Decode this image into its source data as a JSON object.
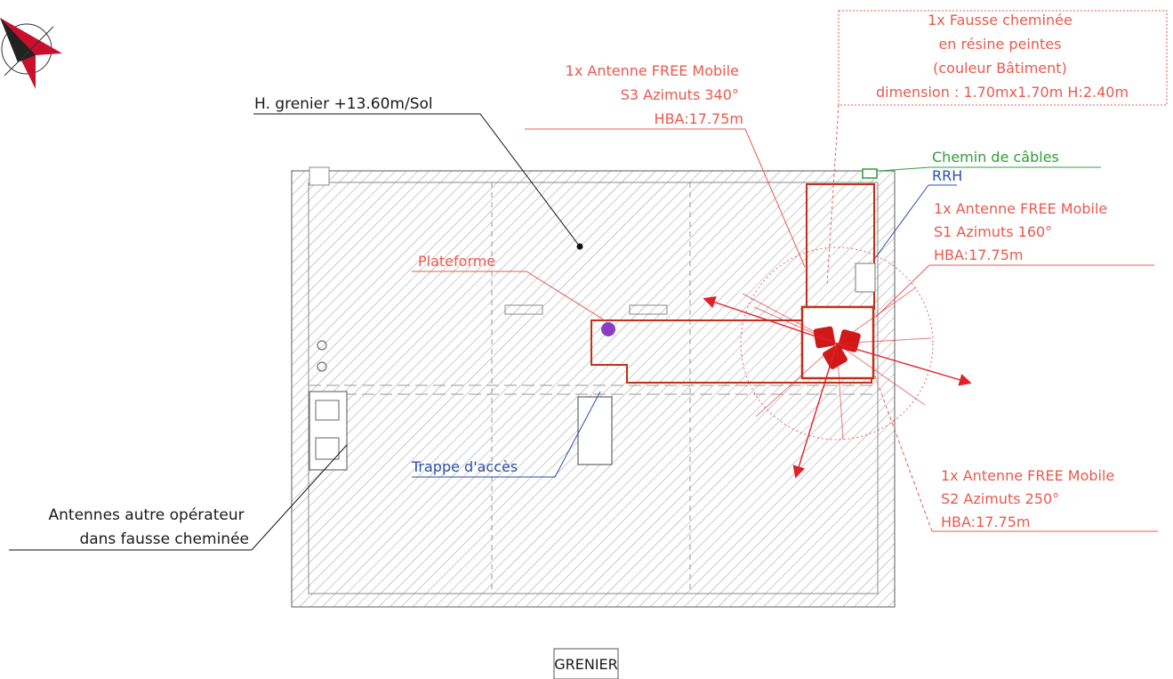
{
  "colors": {
    "antenna": "#e0202a",
    "structure": "#c0301a",
    "cable_tray": "#2f9e3a",
    "rrh": "#2b4fa8",
    "hatch": "#9a9a9a"
  },
  "labels": {
    "height": "H. grenier +13.60m/Sol",
    "s3": [
      "1x Antenne FREE Mobile",
      "S3 Azimuts 340°",
      "HBA:17.75m"
    ],
    "chimney": [
      "1x Fausse cheminée",
      "en résine peintes",
      "(couleur Bâtiment)",
      "dimension : 1.70mx1.70m  H:2.40m"
    ],
    "cable_tray": "Chemin de câbles",
    "rrh": "RRH",
    "s1": [
      "1x Antenne FREE Mobile",
      "S1 Azimuts 160°",
      "HBA:17.75m"
    ],
    "platform": "Plateforme",
    "hatch": "Trappe d'accès",
    "s2": [
      "1x Antenne FREE Mobile",
      "S2 Azimuts 250°",
      "HBA:17.75m"
    ],
    "other_operator": [
      "Antennes autre opérateur",
      "dans fausse cheminée"
    ],
    "room": "GRENIER"
  }
}
